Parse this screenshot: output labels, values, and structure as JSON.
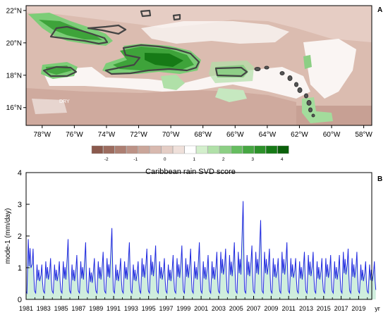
{
  "panel_a": {
    "label": "A",
    "lat_ticks": [
      "22°N",
      "20°N",
      "18°N",
      "16°N"
    ],
    "lon_ticks": [
      "78°W",
      "76°W",
      "74°W",
      "72°W",
      "70°W",
      "68°W",
      "66°W",
      "64°W",
      "62°W",
      "60°W",
      "58°W"
    ],
    "annotation": "DRY",
    "colors": {
      "wet": "#2e9a3a",
      "dry": "#b58474",
      "neutral": "#ffffff",
      "coast": "#444444"
    }
  },
  "colorbar": {
    "title": "Caribbean rain SVD score",
    "tick_labels": [
      "-2",
      "-1",
      "0",
      "1",
      "2",
      "3",
      "4"
    ],
    "colors": [
      "#8b5a4d",
      "#9c6c5f",
      "#ad7f72",
      "#bc9286",
      "#caa69a",
      "#d8b9af",
      "#e4cdc5",
      "#efe0da",
      "#ffffff",
      "#d3efcc",
      "#b0e0a8",
      "#8ccf84",
      "#66bd60",
      "#46a742",
      "#2c9129",
      "#167a16",
      "#0a600a"
    ]
  },
  "chart_data": {
    "type": "area",
    "panel_label": "B",
    "ylabel": "mode-1 (mm/day)",
    "xlabel": "yr",
    "ylim": [
      0,
      4
    ],
    "xlim": [
      1981,
      2020.5
    ],
    "yticks": [
      "0",
      "1",
      "2",
      "3",
      "4"
    ],
    "xticks": [
      "1981",
      "1983",
      "1985",
      "1987",
      "1989",
      "1991",
      "1993",
      "1995",
      "1997",
      "1999",
      "2001",
      "2003",
      "2005",
      "2007",
      "2009",
      "2011",
      "2013",
      "2015",
      "2017",
      "2019"
    ],
    "line_color": "#1f28e0",
    "fill_color": "#cfeedd",
    "annual_peaks": [
      {
        "year": 1981,
        "peaks": [
          1.6,
          1.9
        ]
      },
      {
        "year": 1982,
        "peaks": [
          1.1,
          1.1
        ]
      },
      {
        "year": 1983,
        "peaks": [
          1.3,
          1.2
        ]
      },
      {
        "year": 1984,
        "peaks": [
          1.2,
          1.1
        ]
      },
      {
        "year": 1985,
        "peaks": [
          1.9,
          1.2
        ]
      },
      {
        "year": 1986,
        "peaks": [
          1.4,
          1.1
        ]
      },
      {
        "year": 1987,
        "peaks": [
          1.8,
          1.2
        ]
      },
      {
        "year": 1988,
        "peaks": [
          1.3,
          1.0
        ]
      },
      {
        "year": 1989,
        "peaks": [
          1.5,
          1.2
        ]
      },
      {
        "year": 1990,
        "peaks": [
          2.25,
          1.3
        ]
      },
      {
        "year": 1991,
        "peaks": [
          1.3,
          1.1
        ]
      },
      {
        "year": 1992,
        "peaks": [
          1.8,
          1.2
        ]
      },
      {
        "year": 1993,
        "peaks": [
          1.2,
          1.1
        ]
      },
      {
        "year": 1994,
        "peaks": [
          1.6,
          1.3
        ]
      },
      {
        "year": 1995,
        "peaks": [
          1.7,
          1.4
        ]
      },
      {
        "year": 1996,
        "peaks": [
          1.3,
          1.2
        ]
      },
      {
        "year": 1997,
        "peaks": [
          1.4,
          1.1
        ]
      },
      {
        "year": 1998,
        "peaks": [
          1.7,
          1.3
        ]
      },
      {
        "year": 1999,
        "peaks": [
          1.6,
          1.3
        ]
      },
      {
        "year": 2000,
        "peaks": [
          1.8,
          1.2
        ]
      },
      {
        "year": 2001,
        "peaks": [
          1.4,
          1.2
        ]
      },
      {
        "year": 2002,
        "peaks": [
          1.5,
          1.2
        ]
      },
      {
        "year": 2003,
        "peaks": [
          1.6,
          1.5
        ]
      },
      {
        "year": 2004,
        "peaks": [
          1.8,
          1.4
        ]
      },
      {
        "year": 2005,
        "peaks": [
          3.1,
          1.5
        ]
      },
      {
        "year": 2006,
        "peaks": [
          1.7,
          1.4
        ]
      },
      {
        "year": 2007,
        "peaks": [
          2.5,
          1.5
        ]
      },
      {
        "year": 2008,
        "peaks": [
          1.6,
          1.5
        ]
      },
      {
        "year": 2009,
        "peaks": [
          1.3,
          1.3
        ]
      },
      {
        "year": 2010,
        "peaks": [
          1.8,
          1.5
        ]
      },
      {
        "year": 2011,
        "peaks": [
          1.3,
          1.3
        ]
      },
      {
        "year": 2012,
        "peaks": [
          1.5,
          1.2
        ]
      },
      {
        "year": 2013,
        "peaks": [
          1.5,
          1.4
        ]
      },
      {
        "year": 2014,
        "peaks": [
          1.3,
          1.2
        ]
      },
      {
        "year": 2015,
        "peaks": [
          1.4,
          1.3
        ]
      },
      {
        "year": 2016,
        "peaks": [
          1.4,
          1.2
        ]
      },
      {
        "year": 2017,
        "peaks": [
          1.6,
          1.5
        ]
      },
      {
        "year": 2018,
        "peaks": [
          1.5,
          1.3
        ]
      },
      {
        "year": 2019,
        "peaks": [
          1.2,
          1.1
        ]
      },
      {
        "year": 2020,
        "peaks": [
          1.2,
          1.1
        ]
      }
    ]
  }
}
